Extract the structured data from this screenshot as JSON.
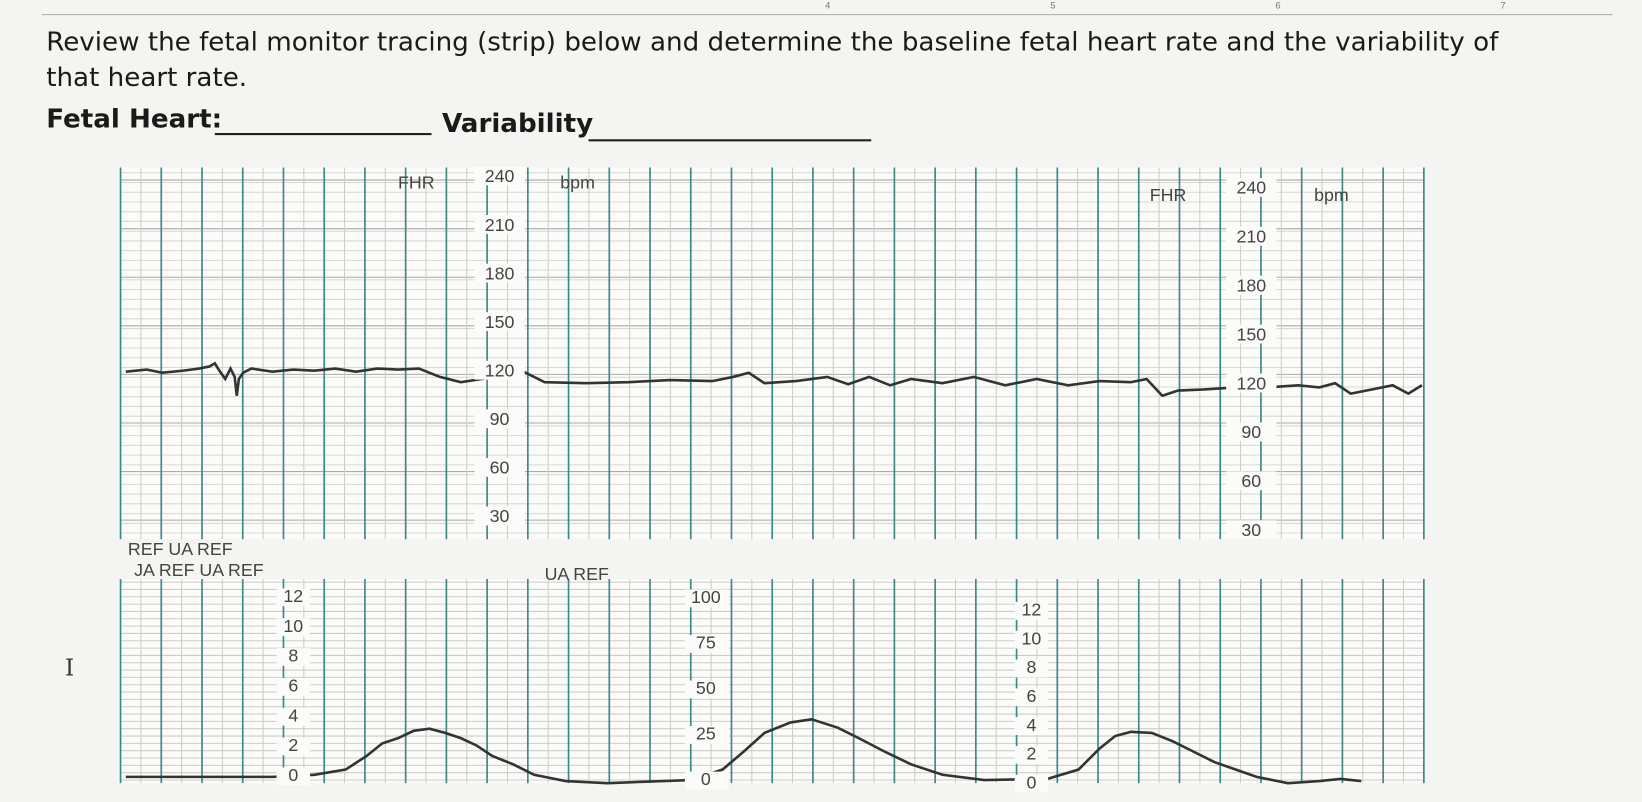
{
  "ruler": {
    "labels": [
      "4",
      "5",
      "6",
      "7"
    ]
  },
  "question": {
    "text_lines": [
      "Review the fetal monitor tracing (strip) below and determine the baseline fetal heart rate and the variability of",
      "that heart rate."
    ],
    "fetal_heart_label": "Fetal Heart:",
    "variability_label": "Variability"
  },
  "strip": {
    "fhr_panels": [
      {
        "label": "FHR",
        "unit": "bpm",
        "scale": [
          "240",
          "210",
          "180",
          "150",
          "120",
          "90",
          "60",
          "30"
        ]
      },
      {
        "label": "FHR",
        "unit": "bpm",
        "scale": [
          "240",
          "210",
          "180",
          "150",
          "120",
          "90",
          "60",
          "30"
        ]
      }
    ],
    "ua_labels": [
      "REF UA REF",
      "JA REF UA REF",
      "UA REF"
    ],
    "ua_scales": [
      [
        "12",
        "10",
        "8",
        "6",
        "4",
        "2",
        "0"
      ],
      [
        "100",
        "75",
        "50",
        "25",
        "0"
      ],
      [
        "12",
        "10",
        "8",
        "6",
        "4",
        "2",
        "0"
      ]
    ]
  }
}
